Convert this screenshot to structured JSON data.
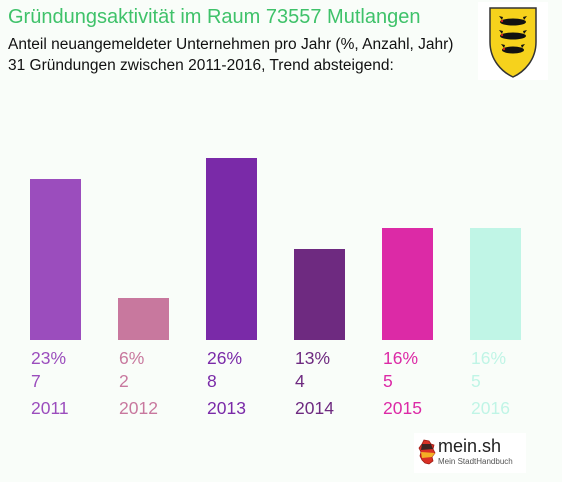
{
  "header": {
    "title": "Gründungsaktivität im Raum 73557 Mutlangen",
    "subtitle_line1": "Anteil neuangemeldeter Unternehmen pro Jahr (%, Anzahl, Jahr)",
    "subtitle_line2": "31 Gründungen zwischen 2011-2016, Trend absteigend:"
  },
  "logo": {
    "name": "mein.sh",
    "tagline": "Mein StadtHandbuch"
  },
  "icons": {
    "coat_of_arms": "baden-wuerttemberg-coat-of-arms-icon",
    "logo_map": "germany-map-icon"
  },
  "chart_data": {
    "type": "bar",
    "categories": [
      "2011",
      "2012",
      "2013",
      "2014",
      "2015",
      "2016"
    ],
    "values": [
      23,
      6,
      26,
      13,
      16,
      16
    ],
    "counts": [
      7,
      2,
      8,
      4,
      5,
      5
    ],
    "percent_labels": [
      "23%",
      "6%",
      "26%",
      "13%",
      "16%",
      "16%"
    ],
    "count_labels": [
      "7",
      "2",
      "8",
      "4",
      "5",
      "5"
    ],
    "colors": [
      "#9b4dbd",
      "#c8789e",
      "#7a2aa8",
      "#6e2a80",
      "#dc2aa6",
      "#c0f5e6"
    ],
    "ylim": [
      0,
      26
    ],
    "grid": false,
    "legend": "none"
  }
}
